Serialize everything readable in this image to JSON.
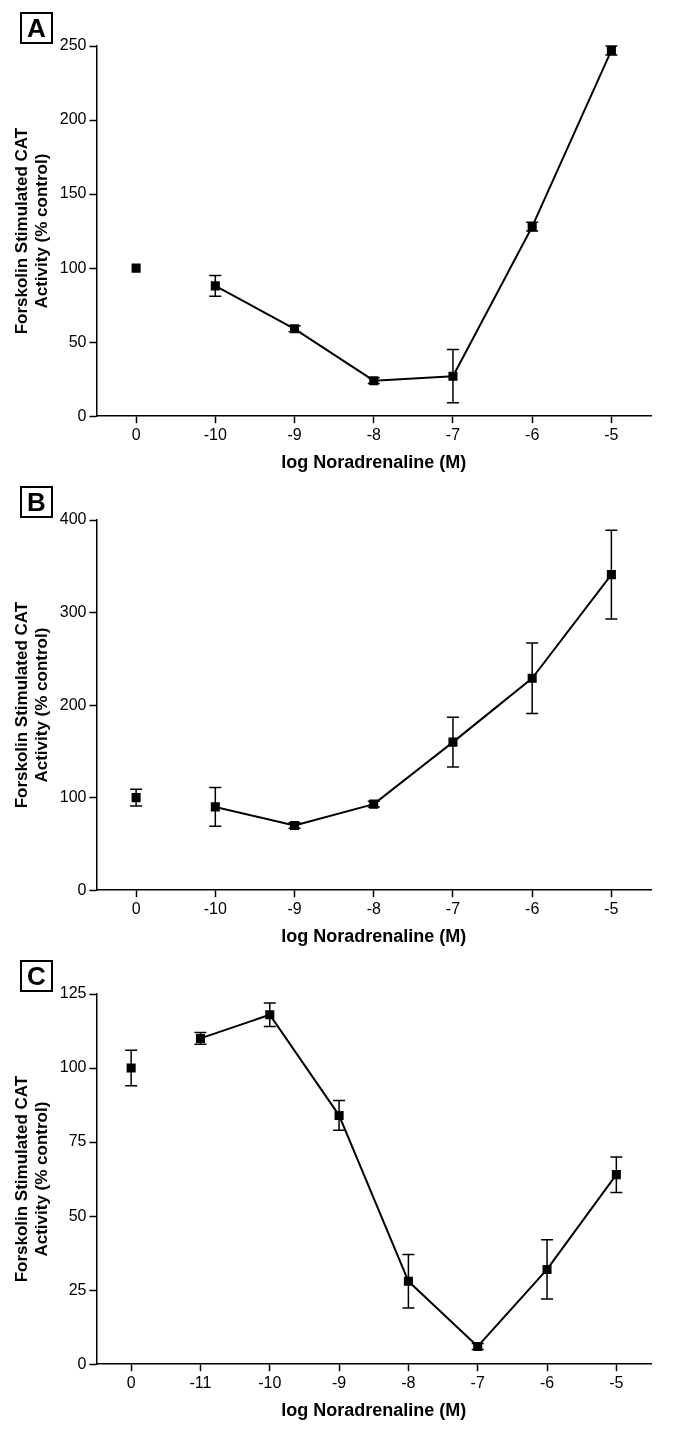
{
  "chart_data": [
    {
      "type": "line",
      "title": "A",
      "xlabel": "log Noradrenaline (M)",
      "ylabel": "Forskolin Stimulated CAT Activity (% control)",
      "categories": [
        "0",
        "-10",
        "-9",
        "-8",
        "-7",
        "-6",
        "-5"
      ],
      "ylim": [
        0,
        250
      ],
      "yticks": [
        0,
        50,
        100,
        150,
        200,
        250
      ],
      "grid": false,
      "legend": false,
      "marker": "square",
      "series": [
        {
          "type": "scatter",
          "color": "#000000",
          "x": [
            "0"
          ],
          "values": [
            100
          ]
        },
        {
          "type": "line",
          "color": "#000000",
          "values": [
            null,
            88,
            59,
            24,
            27,
            128,
            247
          ],
          "errors": [
            null,
            7,
            2,
            2,
            18,
            3,
            3
          ]
        }
      ]
    },
    {
      "type": "line",
      "title": "B",
      "xlabel": "log Noradrenaline (M)",
      "ylabel": "Forskolin Stimulated CAT Activity (% control)",
      "categories": [
        "0",
        "-10",
        "-9",
        "-8",
        "-7",
        "-6",
        "-5"
      ],
      "ylim": [
        0,
        400
      ],
      "yticks": [
        0,
        100,
        200,
        300,
        400
      ],
      "grid": false,
      "legend": false,
      "marker": "square",
      "series": [
        {
          "type": "scatter",
          "color": "#000000",
          "x": [
            "0"
          ],
          "values": [
            100
          ],
          "errors": [
            9
          ]
        },
        {
          "type": "line",
          "color": "#000000",
          "values": [
            null,
            90,
            70,
            93,
            160,
            229,
            341
          ],
          "errors": [
            null,
            21,
            3,
            3,
            27,
            38,
            48
          ]
        }
      ]
    },
    {
      "type": "line",
      "title": "C",
      "xlabel": "log Noradrenaline (M)",
      "ylabel": "Forskolin Stimulated CAT Activity (% control)",
      "categories": [
        "0",
        "-11",
        "-10",
        "-9",
        "-8",
        "-7",
        "-6",
        "-5"
      ],
      "ylim": [
        0,
        125
      ],
      "yticks": [
        0,
        25,
        50,
        75,
        100,
        125
      ],
      "grid": false,
      "legend": false,
      "marker": "square",
      "series": [
        {
          "type": "scatter",
          "color": "#000000",
          "x": [
            "0"
          ],
          "values": [
            100
          ],
          "errors": [
            6
          ]
        },
        {
          "type": "line",
          "color": "#000000",
          "values": [
            null,
            110,
            118,
            84,
            28,
            6,
            32,
            64
          ],
          "errors": [
            null,
            2,
            4,
            5,
            9,
            1,
            10,
            6
          ]
        }
      ]
    }
  ]
}
